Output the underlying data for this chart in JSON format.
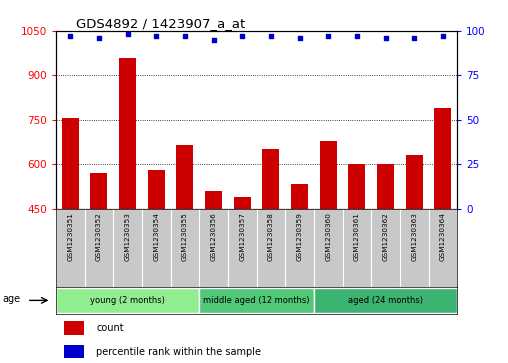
{
  "title": "GDS4892 / 1423907_a_at",
  "samples": [
    "GSM1230351",
    "GSM1230352",
    "GSM1230353",
    "GSM1230354",
    "GSM1230355",
    "GSM1230356",
    "GSM1230357",
    "GSM1230358",
    "GSM1230359",
    "GSM1230360",
    "GSM1230361",
    "GSM1230362",
    "GSM1230363",
    "GSM1230364"
  ],
  "counts": [
    755,
    570,
    960,
    580,
    665,
    510,
    490,
    650,
    535,
    680,
    600,
    600,
    630,
    790
  ],
  "percentile_ranks": [
    97,
    96,
    98,
    97,
    97,
    95,
    97,
    97,
    96,
    97,
    97,
    96,
    96,
    97
  ],
  "ylim_left": [
    450,
    1050
  ],
  "ylim_right": [
    0,
    100
  ],
  "yticks_left": [
    450,
    600,
    750,
    900,
    1050
  ],
  "yticks_right": [
    0,
    25,
    50,
    75,
    100
  ],
  "groups": [
    {
      "label": "young (2 months)",
      "start": 0,
      "end": 5,
      "color": "#90EE90"
    },
    {
      "label": "middle aged (12 months)",
      "start": 5,
      "end": 9,
      "color": "#50C878"
    },
    {
      "label": "aged (24 months)",
      "start": 9,
      "end": 14,
      "color": "#3CB371"
    }
  ],
  "bar_color": "#CC0000",
  "dot_color": "#0000CC",
  "sample_bg_color": "#C8C8C8",
  "plot_bg": "#FFFFFF",
  "legend_count_color": "#CC0000",
  "legend_pct_color": "#0000CC"
}
